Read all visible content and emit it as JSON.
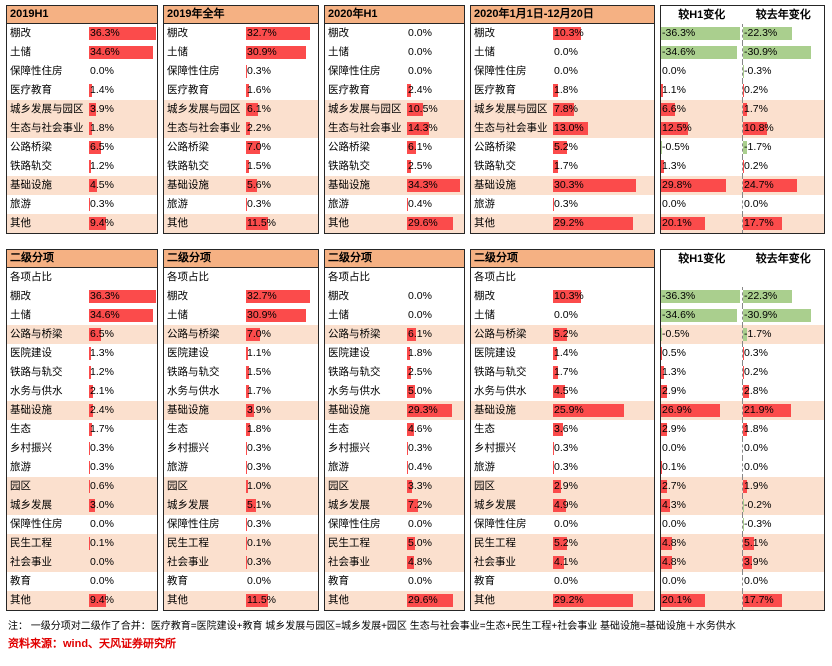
{
  "unit": "%",
  "secondary_header": "二级分项",
  "secondary_subheader": "各项占比",
  "footnote": "注：  一级分项对二级作了合并：医疗教育=医院建设+教育  城乡发展与园区=城乡发展+园区  生态与社会事业=生态+民生工程+社会事业  基础设施=基础设施＋水务供水",
  "source": "资料来源：wind、天风证券研究所",
  "colors": {
    "header_bg": "#F5B183",
    "row_highlight": "#FBE0CE",
    "bar_positive": "#FB4B4B",
    "bar_negative": "#AACF8E",
    "border": "#262626",
    "source_text": "#E00000"
  },
  "chart_data": [
    {
      "type": "bar",
      "orientation": "horizontal",
      "title": "一级分项占比",
      "unit": "%",
      "bar_scale_max": 37,
      "categories": [
        "棚改",
        "土储",
        "保障性住房",
        "医疗教育",
        "城乡发展与园区",
        "生态与社会事业",
        "公路桥梁",
        "铁路轨交",
        "基础设施",
        "旅游",
        "其他"
      ],
      "highlight_rows": [
        "城乡发展与园区",
        "生态与社会事业",
        "基础设施",
        "其他"
      ],
      "series": [
        {
          "name": "2019H1",
          "values": [
            36.3,
            34.6,
            0.0,
            1.4,
            3.9,
            1.8,
            6.5,
            1.2,
            4.5,
            0.3,
            9.4
          ]
        },
        {
          "name": "2019年全年",
          "values": [
            32.7,
            30.9,
            0.3,
            1.6,
            6.1,
            2.2,
            7.0,
            1.5,
            5.6,
            0.3,
            11.5
          ]
        },
        {
          "name": "2020年H1",
          "values": [
            0.0,
            0.0,
            0.0,
            2.4,
            10.5,
            14.3,
            6.1,
            2.5,
            34.3,
            0.4,
            29.6
          ]
        },
        {
          "name": "2020年1月1日-12月20日",
          "values": [
            10.3,
            0.0,
            0.0,
            1.8,
            7.8,
            13.0,
            5.2,
            1.7,
            30.3,
            0.3,
            29.2
          ]
        },
        {
          "name": "较H1变化",
          "values": [
            -36.3,
            -34.6,
            0.0,
            1.1,
            6.6,
            12.5,
            -0.5,
            1.3,
            29.8,
            0.0,
            20.1
          ]
        },
        {
          "name": "较去年变化",
          "values": [
            -22.3,
            -30.9,
            -0.3,
            0.2,
            1.7,
            10.8,
            -1.7,
            0.2,
            24.7,
            0.0,
            17.7
          ]
        }
      ]
    },
    {
      "type": "bar",
      "orientation": "horizontal",
      "title": "二级分项各项占比",
      "unit": "%",
      "bar_scale_max": 37,
      "categories": [
        "棚改",
        "土储",
        "公路与桥梁",
        "医院建设",
        "铁路与轨交",
        "水务与供水",
        "基础设施",
        "生态",
        "乡村振兴",
        "旅游",
        "园区",
        "城乡发展",
        "保障性住房",
        "民生工程",
        "社会事业",
        "教育",
        "其他"
      ],
      "highlight_rows": [
        "公路与桥梁",
        "基础设施",
        "园区",
        "城乡发展",
        "民生工程",
        "社会事业",
        "其他"
      ],
      "series": [
        {
          "name": "2019H1",
          "values": [
            36.3,
            34.6,
            6.5,
            1.3,
            1.2,
            2.1,
            2.4,
            1.7,
            0.3,
            0.3,
            0.6,
            3.0,
            0.0,
            0.1,
            0.0,
            0.0,
            9.4
          ]
        },
        {
          "name": "2019年全年",
          "values": [
            32.7,
            30.9,
            7.0,
            1.1,
            1.5,
            1.7,
            3.9,
            1.8,
            0.3,
            0.3,
            1.0,
            5.1,
            0.3,
            0.1,
            0.3,
            0.0,
            11.5
          ]
        },
        {
          "name": "2020年H1",
          "values": [
            0.0,
            0.0,
            6.1,
            1.8,
            2.5,
            5.0,
            29.3,
            4.6,
            0.3,
            0.4,
            3.3,
            7.2,
            0.0,
            5.0,
            4.8,
            0.0,
            29.6
          ]
        },
        {
          "name": "2020年1月1日-12月20日",
          "values": [
            10.3,
            0.0,
            5.2,
            1.4,
            1.7,
            4.5,
            25.9,
            3.6,
            0.3,
            0.3,
            2.9,
            4.9,
            0.0,
            5.2,
            4.1,
            0.0,
            29.2
          ]
        },
        {
          "name": "较H1变化",
          "values": [
            -36.3,
            -34.6,
            -0.5,
            0.5,
            1.3,
            2.9,
            26.9,
            2.9,
            0.0,
            0.1,
            2.7,
            4.3,
            0.0,
            4.8,
            4.8,
            0.0,
            20.1
          ]
        },
        {
          "name": "较去年变化",
          "values": [
            -22.3,
            -30.9,
            -1.7,
            0.3,
            0.2,
            2.8,
            21.9,
            1.8,
            0.0,
            0.0,
            1.9,
            -0.2,
            -0.3,
            5.1,
            3.9,
            0.0,
            17.7
          ]
        }
      ]
    }
  ]
}
